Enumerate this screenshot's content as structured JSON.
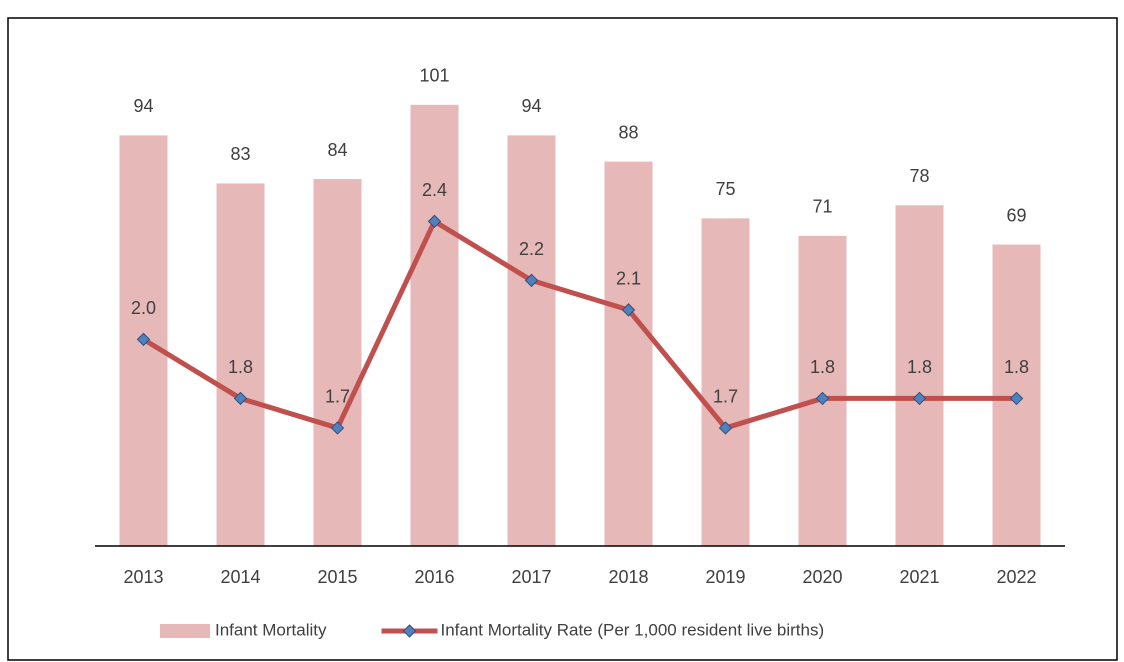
{
  "chart_data": {
    "type": "combo",
    "categories": [
      "2013",
      "2014",
      "2015",
      "2016",
      "2017",
      "2018",
      "2019",
      "2020",
      "2021",
      "2022"
    ],
    "series": [
      {
        "name": "Infant Mortality",
        "type": "bar",
        "color": "#e6b8b7",
        "values": [
          94,
          83,
          84,
          101,
          94,
          88,
          75,
          71,
          78,
          69
        ]
      },
      {
        "name": "Infant Mortality Rate (Per 1,000 resident live births)",
        "type": "line",
        "axis": "y2",
        "color": "#c0504d",
        "marker_color": "#4f81bd",
        "values": [
          2.0,
          1.8,
          1.7,
          2.4,
          2.2,
          2.1,
          1.7,
          1.8,
          1.8,
          1.8
        ],
        "value_labels": [
          "2.0",
          "1.8",
          "1.7",
          "2.4",
          "2.2",
          "2.1",
          "1.7",
          "1.8",
          "1.8",
          "1.8"
        ]
      }
    ],
    "ylim": [
      0,
      125
    ],
    "y2lim": [
      1.3,
      3.15
    ],
    "grid": false,
    "legend": "bottom"
  }
}
